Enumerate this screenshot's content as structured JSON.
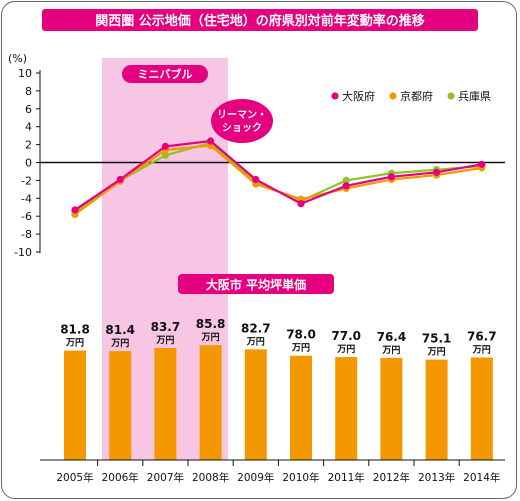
{
  "title": "関西圏 公示地価（住宅地）の府県別対前年変動率の推移",
  "colors": {
    "title_bg": "#e4007f",
    "bubble_band": "#f6c6e4",
    "osaka": "#e4007f",
    "kyoto": "#f39800",
    "hyogo": "#8fc31f",
    "bar": "#f39800",
    "badge": "#e4007f",
    "text": "#111111"
  },
  "chart_data": [
    {
      "type": "line",
      "title": "関西圏 公示地価（住宅地）の府県別対前年変動率の推移",
      "unit_label": "(%)",
      "x": [
        "2005年",
        "2006年",
        "2007年",
        "2008年",
        "2009年",
        "2010年",
        "2011年",
        "2012年",
        "2013年",
        "2014年"
      ],
      "ylim": [
        -10,
        10
      ],
      "yticks": [
        10,
        8,
        6,
        4,
        2,
        0,
        -2,
        -4,
        -6,
        -8,
        -10
      ],
      "grid": false,
      "legend_position": "top-right",
      "series": [
        {
          "name": "大阪府",
          "color": "#e4007f",
          "values": [
            -5.3,
            -1.9,
            1.8,
            2.4,
            -1.9,
            -4.6,
            -2.6,
            -1.6,
            -1.1,
            -0.2
          ]
        },
        {
          "name": "京都府",
          "color": "#f39800",
          "values": [
            -5.8,
            -2.1,
            1.4,
            1.9,
            -2.4,
            -4.1,
            -2.9,
            -1.9,
            -1.4,
            -0.6
          ]
        },
        {
          "name": "兵庫県",
          "color": "#8fc31f",
          "values": [
            -5.5,
            -2.0,
            0.8,
            2.2,
            -2.2,
            -4.3,
            -2.0,
            -1.2,
            -0.8,
            -0.4
          ]
        }
      ],
      "annotations": [
        {
          "text": "ミニバブル",
          "x_range": [
            "2006年",
            "2008年"
          ]
        },
        {
          "text": "リーマン・ショック",
          "x": "2008年"
        }
      ]
    },
    {
      "type": "bar",
      "title": "大阪市 平均坪単価",
      "categories": [
        "2005年",
        "2006年",
        "2007年",
        "2008年",
        "2009年",
        "2010年",
        "2011年",
        "2012年",
        "2013年",
        "2014年"
      ],
      "values": [
        81.8,
        81.4,
        83.7,
        85.8,
        82.7,
        78.0,
        77.0,
        76.4,
        75.1,
        76.7
      ],
      "value_labels": [
        "81.8",
        "81.4",
        "83.7",
        "85.8",
        "82.7",
        "78.0",
        "77.0",
        "76.4",
        "75.1",
        "76.7"
      ],
      "unit": "万円",
      "color": "#f39800"
    }
  ]
}
